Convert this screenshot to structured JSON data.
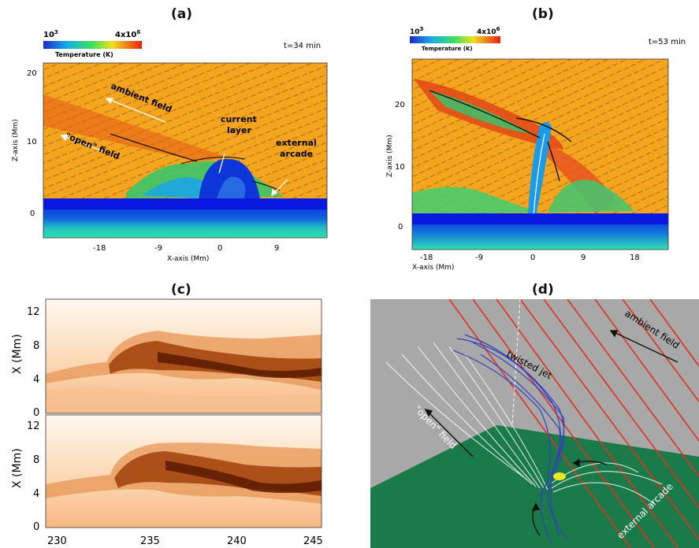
{
  "panels": {
    "a": {
      "label": "(a)",
      "time": "t=34 min",
      "colorbar": {
        "min": "10",
        "min_exp": "3",
        "max": "4x10",
        "max_exp": "6",
        "title": "Temperature (K)"
      },
      "xlabel": "X-axis (Mm)",
      "ylabel": "Z-axis (Mm)",
      "xticks": [
        "-18",
        "-9",
        "0",
        "9"
      ],
      "yticks": [
        "0",
        "10",
        "20"
      ],
      "annotations": {
        "ambient": "ambient field",
        "open": "\"open\" field",
        "current1": "current",
        "current2": "layer",
        "external1": "external",
        "external2": "arcade"
      }
    },
    "b": {
      "label": "(b)",
      "time": "t=53 min",
      "colorbar": {
        "min": "10",
        "min_exp": "3",
        "max": "4x10",
        "max_exp": "6",
        "title": "Temperature (K)"
      },
      "xlabel": "X-axis (Mm)",
      "ylabel": "Z-axis (Mm)",
      "xticks": [
        "-18",
        "-9",
        "0",
        "9",
        "18"
      ],
      "yticks": [
        "0",
        "10",
        "20"
      ]
    },
    "c": {
      "label": "(c)",
      "ylabel": "X (Mm)",
      "yticks": [
        "0",
        "4",
        "8",
        "12"
      ],
      "xticks": [
        "230",
        "235",
        "240",
        "245"
      ]
    },
    "d": {
      "label": "(d)",
      "annotations": {
        "ambient": "ambient field",
        "twisted": "twisted jet",
        "open": "\"open\" field",
        "external": "external arcade"
      }
    }
  },
  "colors": {
    "hot": "#f5a623",
    "cold": "#1030e0",
    "surface_green": "#1a7a4a",
    "field_red": "#e03020",
    "field_blue": "#3040c0"
  }
}
